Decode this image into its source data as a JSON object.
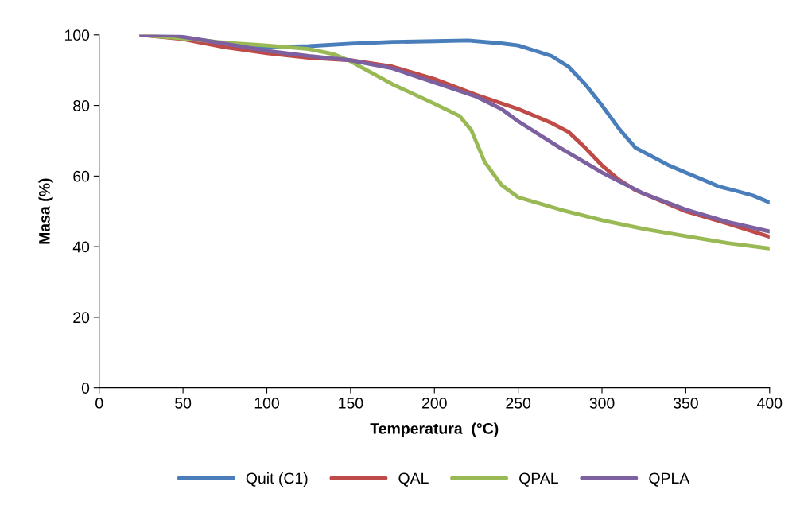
{
  "chart_data": {
    "type": "line",
    "xlabel": "Temperatura  (°C)",
    "ylabel": "Masa (%)",
    "xlim": [
      0,
      400
    ],
    "xticks": [
      0,
      50,
      100,
      150,
      200,
      250,
      300,
      350,
      400
    ],
    "ylim": [
      0,
      100
    ],
    "yticks": [
      0,
      20,
      40,
      60,
      80,
      100
    ],
    "grid": false,
    "legend": "bottom",
    "marker": "none",
    "line_style": "solid",
    "series": [
      {
        "name": "Quit (C1)",
        "color": "#4a7ebb",
        "x": [
          25,
          50,
          75,
          100,
          125,
          150,
          175,
          200,
          220,
          240,
          250,
          260,
          270,
          280,
          290,
          300,
          310,
          320,
          330,
          340,
          350,
          360,
          370,
          380,
          390,
          400
        ],
        "values": [
          100,
          99.3,
          97.5,
          96.5,
          96.8,
          97.5,
          98,
          98.2,
          98.4,
          97.6,
          97,
          95.5,
          94,
          91,
          86,
          80,
          73.5,
          68,
          65.5,
          63,
          61,
          59,
          57,
          55.8,
          54.5,
          52.5
        ]
      },
      {
        "name": "QAL",
        "color": "#be4b48",
        "x": [
          25,
          50,
          75,
          100,
          125,
          150,
          175,
          200,
          225,
          250,
          270,
          280,
          290,
          300,
          310,
          320,
          330,
          350,
          375,
          400
        ],
        "values": [
          100,
          98.8,
          96.5,
          94.8,
          93.5,
          92.8,
          91,
          87.5,
          83,
          79,
          75,
          72.5,
          68,
          63,
          59,
          56,
          54,
          50,
          46.5,
          42.8
        ]
      },
      {
        "name": "QPAL",
        "color": "#98b954",
        "x": [
          25,
          50,
          75,
          100,
          125,
          140,
          150,
          175,
          200,
          215,
          222,
          230,
          240,
          250,
          275,
          300,
          325,
          350,
          375,
          400
        ],
        "values": [
          100,
          99,
          97.8,
          97,
          96,
          94.5,
          92.5,
          86,
          80.5,
          77,
          73,
          64,
          57.5,
          54,
          50.5,
          47.5,
          45,
          43,
          41,
          39.5
        ]
      },
      {
        "name": "QPLA",
        "color": "#7d60a0",
        "x": [
          25,
          45,
          75,
          100,
          125,
          150,
          175,
          200,
          225,
          240,
          250,
          275,
          300,
          325,
          350,
          375,
          400
        ],
        "values": [
          100,
          99.8,
          97.5,
          95.5,
          94,
          92.8,
          90.5,
          86.5,
          82.5,
          79,
          75.5,
          68,
          61,
          55,
          50.5,
          47,
          44.3
        ]
      }
    ]
  }
}
